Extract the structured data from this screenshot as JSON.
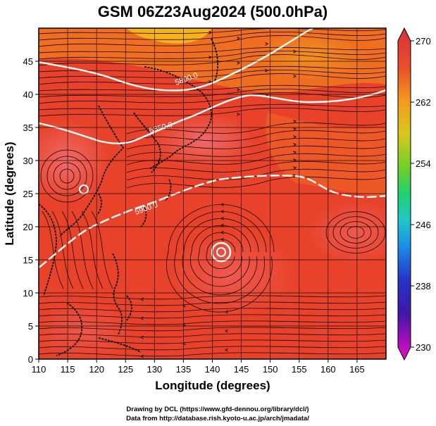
{
  "title": "GSM 06Z23Aug2024 (500.0hPa)",
  "xlabel": "Longitude (degrees)",
  "ylabel": "Latitude  (degrees)",
  "x_ticks": [
    "110",
    "115",
    "120",
    "125",
    "130",
    "135",
    "140",
    "145",
    "150",
    "155",
    "160",
    "165"
  ],
  "y_ticks": [
    "0",
    "5",
    "10",
    "15",
    "20",
    "25",
    "30",
    "35",
    "40",
    "45"
  ],
  "colorbar": {
    "ticks": [
      "270",
      "262",
      "254",
      "246",
      "238",
      "230"
    ],
    "colors": [
      "#d5103a",
      "#e8502a",
      "#f59a1e",
      "#d8c81c",
      "#7fd02a",
      "#2ad06a",
      "#1fc8c8",
      "#1e7de8",
      "#2630c8",
      "#4018a8",
      "#9a10b8",
      "#e010c0"
    ]
  },
  "contours": [
    {
      "label": "5800.0"
    },
    {
      "label": "5850.0"
    },
    {
      "label": "5900.0"
    }
  ],
  "credit_line1": "Drawing by DCL (https://www.gfd-dennou.org/library/dcl/)",
  "credit_line2": "Data from http://database.rish.kyoto-u.ac.jp/arch/jmadata/"
}
